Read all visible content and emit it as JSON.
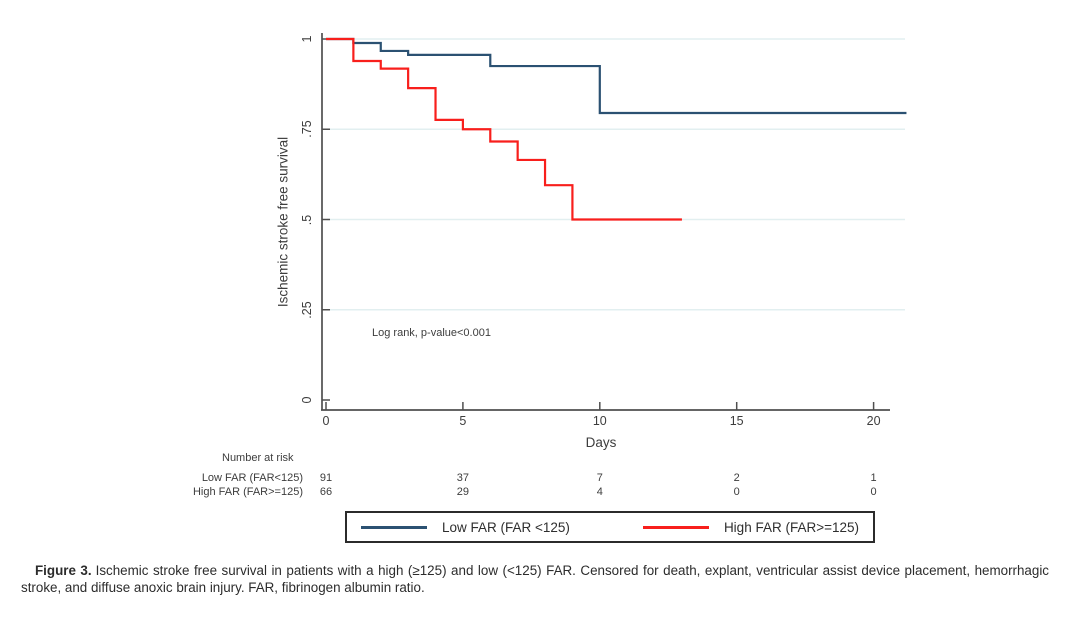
{
  "figure": {
    "y_axis_title": "Ischemic stroke free survival",
    "x_axis_title": "Days",
    "annotation": "Log rank, p-value<0.001",
    "colors": {
      "low": "#2b5172",
      "high": "#f81f1c",
      "grid": "#e2eff0",
      "axis": "#4f4f4f",
      "text": "#3d3d3d"
    }
  },
  "chart_data": {
    "type": "line",
    "subtype": "kaplan-meier-step",
    "title": "",
    "xlabel": "Days",
    "ylabel": "Ischemic stroke free survival",
    "xlim": [
      0,
      21.5
    ],
    "ylim": [
      0,
      1
    ],
    "x_ticks": [
      0,
      5,
      10,
      15,
      20
    ],
    "x_tick_labels": [
      "0",
      "5",
      "10",
      "15",
      "20"
    ],
    "y_ticks": [
      0,
      0.25,
      0.5,
      0.75,
      1
    ],
    "y_tick_labels": [
      "0",
      ".25",
      ".5",
      ".75",
      "1"
    ],
    "grid": "horizontal",
    "legend_position": "bottom",
    "annotation": "Log rank, p-value<0.001",
    "series": [
      {
        "name": "Low FAR (FAR <125)",
        "key": "low-far-curve",
        "color_key": "low",
        "steps": [
          [
            0,
            1
          ],
          [
            1,
            0.989
          ],
          [
            2,
            0.967
          ],
          [
            3,
            0.956
          ],
          [
            6,
            0.925
          ],
          [
            10,
            0.795
          ]
        ],
        "end_day": 21.2
      },
      {
        "name": "High FAR (FAR>=125)",
        "key": "high-far-curve",
        "color_key": "high",
        "steps": [
          [
            0,
            1
          ],
          [
            1,
            0.939
          ],
          [
            2,
            0.918
          ],
          [
            3,
            0.864
          ],
          [
            4,
            0.776
          ],
          [
            5,
            0.75
          ],
          [
            6,
            0.716
          ],
          [
            7,
            0.665
          ],
          [
            8,
            0.595
          ],
          [
            9,
            0.5
          ]
        ],
        "end_day": 13
      }
    ]
  },
  "risk_table": {
    "title": "Number at risk",
    "rows": [
      {
        "label": "Low FAR (FAR<125)",
        "values": [
          "91",
          "37",
          "7",
          "2",
          "1"
        ]
      },
      {
        "label": "High FAR (FAR>=125)",
        "values": [
          "66",
          "29",
          "4",
          "0",
          "0"
        ]
      }
    ]
  },
  "legend": {
    "items": [
      {
        "label": "Low FAR (FAR <125)",
        "color_key": "low"
      },
      {
        "label": "High FAR (FAR>=125)",
        "color_key": "high"
      }
    ]
  },
  "caption": {
    "label": "Figure 3.",
    "text": "Ischemic stroke free survival in patients with a high (≥125) and low (<125) FAR. Censored for death, explant, ventricular assist device placement, hemorrhagic stroke, and diffuse anoxic brain injury. FAR, fibrinogen albumin ratio."
  }
}
